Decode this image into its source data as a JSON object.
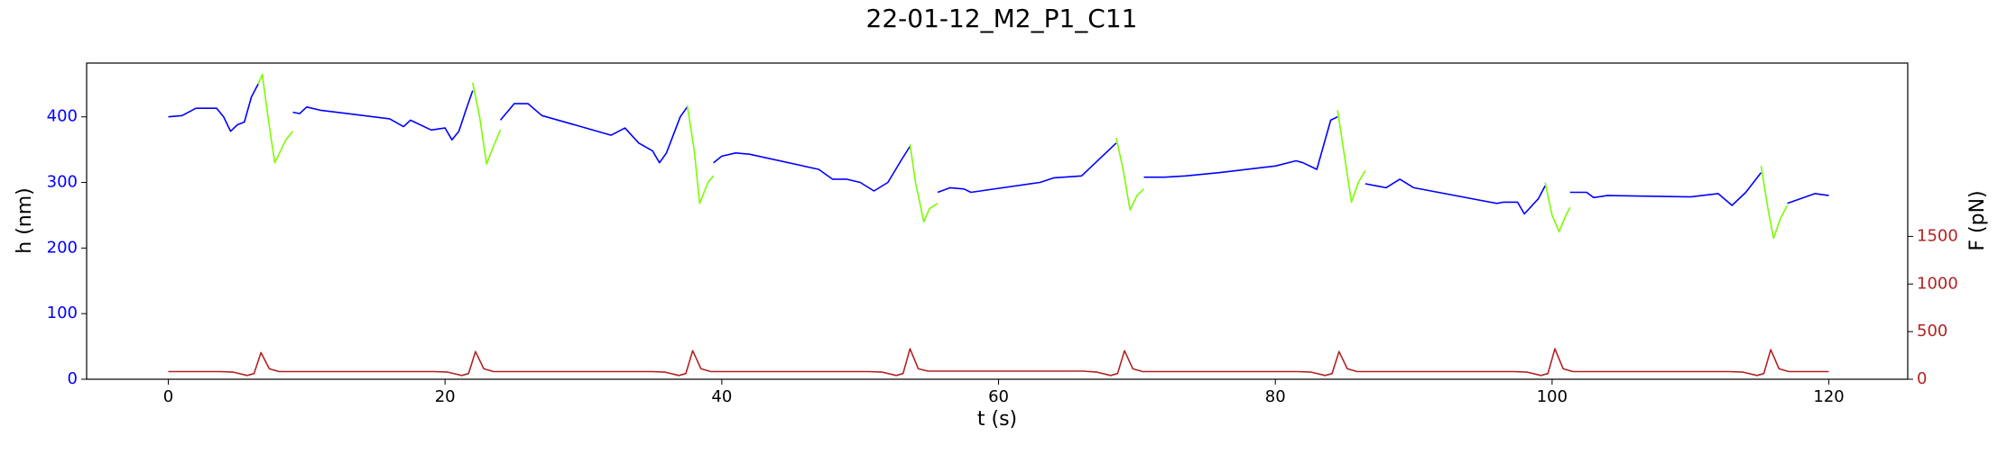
{
  "chart_data": {
    "type": "line",
    "title": "22-01-12_M2_P1_C11",
    "x_label": "t (s)",
    "y_label": "h (nm)",
    "y2_label": "F (pN)",
    "xlim": [
      -5.9,
      125.7
    ],
    "xticks": [
      0,
      20,
      40,
      60,
      80,
      100,
      120
    ],
    "ylim": [
      0,
      482
    ],
    "yticks": [
      0,
      100,
      200,
      300,
      400
    ],
    "y_color": "#0000ff",
    "y2lim": [
      0,
      3320
    ],
    "y2ticks": [
      0,
      500,
      1000,
      1500
    ],
    "y2_color": "#b22222",
    "series": [
      {
        "color": "#0000ff",
        "x": [
          0,
          1,
          2,
          3.5,
          4,
          4.5,
          5,
          5.5,
          6,
          6.5,
          6.8,
          9,
          9,
          9.5,
          10,
          11,
          16,
          17,
          17.5,
          19,
          20,
          20.5,
          21,
          21.5,
          22,
          22,
          24,
          25,
          26,
          27,
          32,
          33,
          34,
          35,
          35.5,
          36,
          37,
          37.5,
          37.5,
          39.4,
          40,
          41,
          42,
          47,
          48,
          49,
          50,
          51,
          52,
          53,
          53.6,
          53.6,
          55.6,
          56.5,
          57.5,
          58,
          63,
          64,
          66,
          67,
          68.5,
          68.5,
          70.5,
          72,
          73.5,
          76,
          80,
          81.5,
          82,
          83,
          84,
          84.5,
          84.5,
          86.5,
          88,
          89,
          90,
          96,
          96.5,
          97.5,
          98,
          99,
          99.5,
          99.5,
          101.3,
          102.5,
          103,
          104,
          110,
          112,
          113,
          114,
          115.1,
          115.1,
          117,
          119,
          120
        ],
        "values": [
          400,
          402,
          413,
          413,
          400,
          378,
          388,
          392,
          430,
          450,
          null,
          null,
          407,
          405,
          415,
          410,
          397,
          385,
          395,
          380,
          383,
          365,
          378,
          410,
          440,
          null,
          395,
          420,
          420,
          402,
          372,
          383,
          360,
          348,
          330,
          345,
          400,
          415,
          null,
          330,
          340,
          345,
          343,
          320,
          305,
          305,
          300,
          287,
          300,
          335,
          355,
          null,
          285,
          292,
          290,
          285,
          300,
          307,
          310,
          330,
          360,
          null,
          308,
          308,
          310,
          315,
          325,
          333,
          330,
          320,
          395,
          400,
          null,
          298,
          292,
          305,
          292,
          268,
          270,
          270,
          252,
          275,
          295,
          null,
          285,
          285,
          277,
          280,
          278,
          283,
          265,
          285,
          315,
          null,
          268,
          283,
          280
        ]
      },
      {
        "color": "#7cfc00",
        "x": [
          6.5,
          6.8,
          7.2,
          7.7,
          8.5,
          9,
          9.5,
          22,
          22.5,
          23,
          23.5,
          24,
          30,
          37.5,
          38,
          38.4,
          39,
          39.4,
          45,
          53.6,
          54,
          54.6,
          55,
          55.6,
          60,
          68.5,
          69,
          69.5,
          70,
          70.5,
          78,
          84.5,
          85,
          85.5,
          86,
          86.5,
          93,
          99.5,
          100,
          100.5,
          101,
          101.3,
          108,
          115.1,
          115.6,
          116,
          116.5,
          117
        ],
        "values": [
          450,
          465,
          400,
          330,
          365,
          378,
          null,
          452,
          400,
          328,
          355,
          380,
          null,
          418,
          350,
          268,
          300,
          310,
          null,
          358,
          300,
          240,
          260,
          268,
          null,
          368,
          320,
          258,
          280,
          290,
          null,
          410,
          340,
          270,
          300,
          318,
          null,
          300,
          250,
          225,
          250,
          262,
          null,
          325,
          260,
          215,
          245,
          265
        ]
      },
      {
        "color": "#b22222",
        "axis": "y2",
        "x": [
          0,
          3.7,
          4.7,
          5.7,
          6.2,
          6.7,
          7.3,
          8,
          19.2,
          20.2,
          21.2,
          21.7,
          22.2,
          22.8,
          23.5,
          34.9,
          35.9,
          36.9,
          37.4,
          37.9,
          38.5,
          39.2,
          50.6,
          51.6,
          52.6,
          53.1,
          53.6,
          54.2,
          54.9,
          66.1,
          67.1,
          68.1,
          68.6,
          69.1,
          69.7,
          70.4,
          81.6,
          82.6,
          83.6,
          84.1,
          84.6,
          85.2,
          85.9,
          97.2,
          98.2,
          99.2,
          99.7,
          100.2,
          100.8,
          101.5,
          112.8,
          113.8,
          114.8,
          115.3,
          115.8,
          116.4,
          117.1,
          120
        ],
        "values": [
          80,
          80,
          75,
          40,
          60,
          280,
          110,
          80,
          80,
          75,
          40,
          60,
          290,
          110,
          80,
          80,
          75,
          40,
          60,
          300,
          110,
          80,
          80,
          75,
          40,
          60,
          320,
          110,
          85,
          85,
          75,
          40,
          60,
          300,
          110,
          80,
          80,
          75,
          40,
          60,
          290,
          110,
          80,
          80,
          75,
          40,
          60,
          320,
          110,
          80,
          80,
          75,
          40,
          60,
          310,
          110,
          80,
          80
        ]
      }
    ]
  }
}
